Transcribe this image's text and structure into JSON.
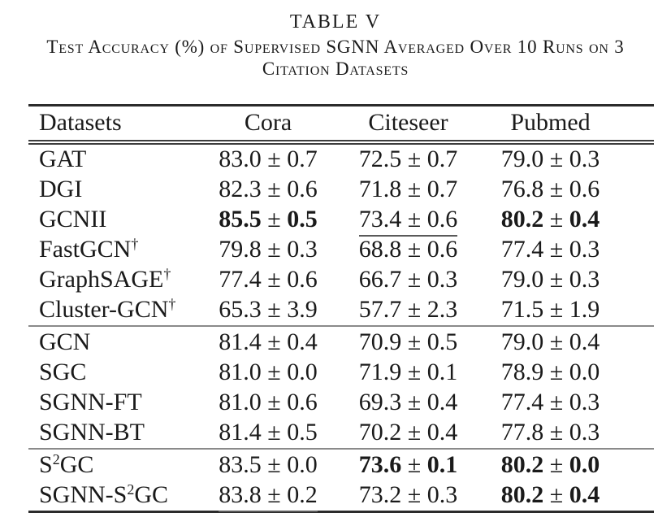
{
  "title": "TABLE V",
  "caption": {
    "line1": "Test Accuracy (%) of Supervised SGNN Averaged Over 10 Runs on 3",
    "line2": "Citation Datasets"
  },
  "colors": {
    "text": "#1a1a1a",
    "heavy_rule": "#2b2b2b",
    "double_rule": "#3d3d3d",
    "group_rule": "#8a8a8a"
  },
  "table": {
    "columns": [
      "Datasets",
      "Cora",
      "Citeseer",
      "Pubmed"
    ],
    "plus_minus": "±",
    "groups": [
      {
        "rows": [
          {
            "label": [
              {
                "t": "GAT"
              }
            ],
            "cells": [
              {
                "mean": "83.0",
                "std": "0.7",
                "bold": false,
                "underline": false
              },
              {
                "mean": "72.5",
                "std": "0.7",
                "bold": false,
                "underline": false
              },
              {
                "mean": "79.0",
                "std": "0.3",
                "bold": false,
                "underline": false
              }
            ]
          },
          {
            "label": [
              {
                "t": "DGI"
              }
            ],
            "cells": [
              {
                "mean": "82.3",
                "std": "0.6",
                "bold": false,
                "underline": false
              },
              {
                "mean": "71.8",
                "std": "0.7",
                "bold": false,
                "underline": false
              },
              {
                "mean": "76.8",
                "std": "0.6",
                "bold": false,
                "underline": false
              }
            ]
          },
          {
            "label": [
              {
                "t": "GCNII"
              }
            ],
            "cells": [
              {
                "mean": "85.5",
                "std": "0.5",
                "bold": true,
                "underline": false
              },
              {
                "mean": "73.4",
                "std": "0.6",
                "bold": false,
                "underline": true
              },
              {
                "mean": "80.2",
                "std": "0.4",
                "bold": true,
                "underline": false
              }
            ]
          },
          {
            "label": [
              {
                "t": "FastGCN"
              },
              {
                "t": "†",
                "sup": true
              }
            ],
            "cells": [
              {
                "mean": "79.8",
                "std": "0.3",
                "bold": false,
                "underline": false
              },
              {
                "mean": "68.8",
                "std": "0.6",
                "bold": false,
                "underline": false
              },
              {
                "mean": "77.4",
                "std": "0.3",
                "bold": false,
                "underline": false
              }
            ]
          },
          {
            "label": [
              {
                "t": "GraphSAGE"
              },
              {
                "t": "†",
                "sup": true
              }
            ],
            "cells": [
              {
                "mean": "77.4",
                "std": "0.6",
                "bold": false,
                "underline": false
              },
              {
                "mean": "66.7",
                "std": "0.3",
                "bold": false,
                "underline": false
              },
              {
                "mean": "79.0",
                "std": "0.3",
                "bold": false,
                "underline": false
              }
            ]
          },
          {
            "label": [
              {
                "t": "Cluster-GCN"
              },
              {
                "t": "†",
                "sup": true
              }
            ],
            "cells": [
              {
                "mean": "65.3",
                "std": "3.9",
                "bold": false,
                "underline": false
              },
              {
                "mean": "57.7",
                "std": "2.3",
                "bold": false,
                "underline": false
              },
              {
                "mean": "71.5",
                "std": "1.9",
                "bold": false,
                "underline": false
              }
            ]
          }
        ]
      },
      {
        "rows": [
          {
            "label": [
              {
                "t": "GCN"
              }
            ],
            "cells": [
              {
                "mean": "81.4",
                "std": "0.4",
                "bold": false,
                "underline": false
              },
              {
                "mean": "70.9",
                "std": "0.5",
                "bold": false,
                "underline": false
              },
              {
                "mean": "79.0",
                "std": "0.4",
                "bold": false,
                "underline": false
              }
            ]
          },
          {
            "label": [
              {
                "t": "SGC"
              }
            ],
            "cells": [
              {
                "mean": "81.0",
                "std": "0.0",
                "bold": false,
                "underline": false
              },
              {
                "mean": "71.9",
                "std": "0.1",
                "bold": false,
                "underline": false
              },
              {
                "mean": "78.9",
                "std": "0.0",
                "bold": false,
                "underline": false
              }
            ]
          },
          {
            "label": [
              {
                "t": "SGNN-FT"
              }
            ],
            "cells": [
              {
                "mean": "81.0",
                "std": "0.6",
                "bold": false,
                "underline": false
              },
              {
                "mean": "69.3",
                "std": "0.4",
                "bold": false,
                "underline": false
              },
              {
                "mean": "77.4",
                "std": "0.3",
                "bold": false,
                "underline": false
              }
            ]
          },
          {
            "label": [
              {
                "t": "SGNN-BT"
              }
            ],
            "cells": [
              {
                "mean": "81.4",
                "std": "0.5",
                "bold": false,
                "underline": false
              },
              {
                "mean": "70.2",
                "std": "0.4",
                "bold": false,
                "underline": false
              },
              {
                "mean": "77.8",
                "std": "0.3",
                "bold": false,
                "underline": false
              }
            ]
          }
        ]
      },
      {
        "rows": [
          {
            "label": [
              {
                "t": "S"
              },
              {
                "t": "2",
                "sup": true
              },
              {
                "t": "GC"
              }
            ],
            "cells": [
              {
                "mean": "83.5",
                "std": "0.0",
                "bold": false,
                "underline": false
              },
              {
                "mean": "73.6",
                "std": "0.1",
                "bold": true,
                "underline": false
              },
              {
                "mean": "80.2",
                "std": "0.0",
                "bold": true,
                "underline": false
              }
            ]
          },
          {
            "label": [
              {
                "t": "SGNN-S"
              },
              {
                "t": "2",
                "sup": true
              },
              {
                "t": "GC"
              }
            ],
            "cells": [
              {
                "mean": "83.8",
                "std": "0.2",
                "bold": false,
                "underline": true
              },
              {
                "mean": "73.2",
                "std": "0.3",
                "bold": false,
                "underline": false
              },
              {
                "mean": "80.2",
                "std": "0.4",
                "bold": true,
                "underline": false
              }
            ]
          }
        ]
      }
    ]
  }
}
